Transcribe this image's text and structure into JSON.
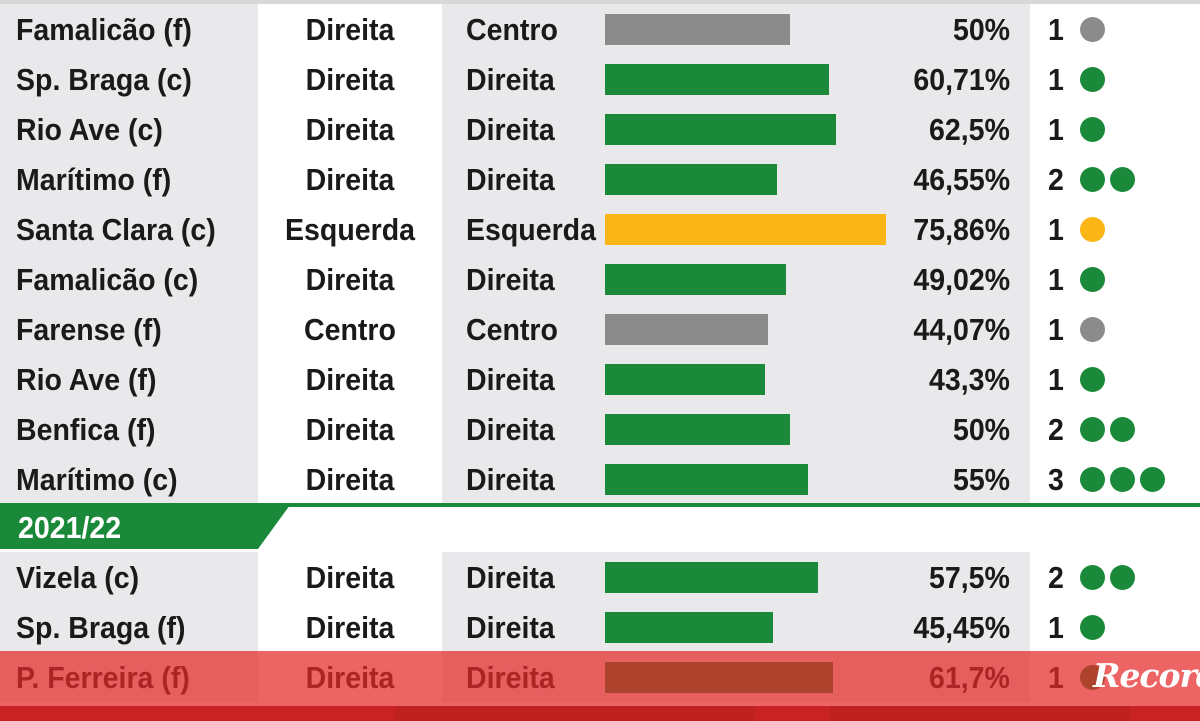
{
  "season_header": "2021/22",
  "colors": {
    "green": "#1a8a3a",
    "gray": "#8b8b8b",
    "yellow": "#fbb515",
    "brand": "#d81e1e"
  },
  "rows_before": [
    {
      "team": "Famalicão (f)",
      "dir1": "Direita",
      "dir2": "Centro",
      "pct": "50%",
      "value": 50,
      "goals": "1",
      "dots": 1,
      "color": "gray"
    },
    {
      "team": "Sp. Braga (c)",
      "dir1": "Direita",
      "dir2": "Direita",
      "pct": "60,71%",
      "value": 60.71,
      "goals": "1",
      "dots": 1,
      "color": "green"
    },
    {
      "team": "Rio Ave (c)",
      "dir1": "Direita",
      "dir2": "Direita",
      "pct": "62,5%",
      "value": 62.5,
      "goals": "1",
      "dots": 1,
      "color": "green"
    },
    {
      "team": "Marítimo (f)",
      "dir1": "Direita",
      "dir2": "Direita",
      "pct": "46,55%",
      "value": 46.55,
      "goals": "2",
      "dots": 2,
      "color": "green"
    },
    {
      "team": "Santa Clara (c)",
      "dir1": "Esquerda",
      "dir2": "Esquerda",
      "pct": "75,86%",
      "value": 75.86,
      "goals": "1",
      "dots": 1,
      "color": "yellow"
    },
    {
      "team": "Famalicão (c)",
      "dir1": "Direita",
      "dir2": "Direita",
      "pct": "49,02%",
      "value": 49.02,
      "goals": "1",
      "dots": 1,
      "color": "green"
    },
    {
      "team": "Farense (f)",
      "dir1": "Centro",
      "dir2": "Centro",
      "pct": "44,07%",
      "value": 44.07,
      "goals": "1",
      "dots": 1,
      "color": "gray"
    },
    {
      "team": "Rio Ave (f)",
      "dir1": "Direita",
      "dir2": "Direita",
      "pct": "43,3%",
      "value": 43.3,
      "goals": "1",
      "dots": 1,
      "color": "green"
    },
    {
      "team": "Benfica (f)",
      "dir1": "Direita",
      "dir2": "Direita",
      "pct": "50%",
      "value": 50,
      "goals": "2",
      "dots": 2,
      "color": "green"
    },
    {
      "team": "Marítimo (c)",
      "dir1": "Direita",
      "dir2": "Direita",
      "pct": "55%",
      "value": 55,
      "goals": "3",
      "dots": 3,
      "color": "green"
    }
  ],
  "rows_after": [
    {
      "team": "Vizela (c)",
      "dir1": "Direita",
      "dir2": "Direita",
      "pct": "57,5%",
      "value": 57.5,
      "goals": "2",
      "dots": 2,
      "color": "green"
    },
    {
      "team": "Sp. Braga (f)",
      "dir1": "Direita",
      "dir2": "Direita",
      "pct": "45,45%",
      "value": 45.45,
      "goals": "1",
      "dots": 1,
      "color": "green"
    },
    {
      "team": "P. Ferreira (f)",
      "dir1": "Direita",
      "dir2": "Direita",
      "pct": "61,7%",
      "value": 61.7,
      "goals": "1",
      "dots": 1,
      "color": "green"
    }
  ],
  "logo_text": "Record"
}
